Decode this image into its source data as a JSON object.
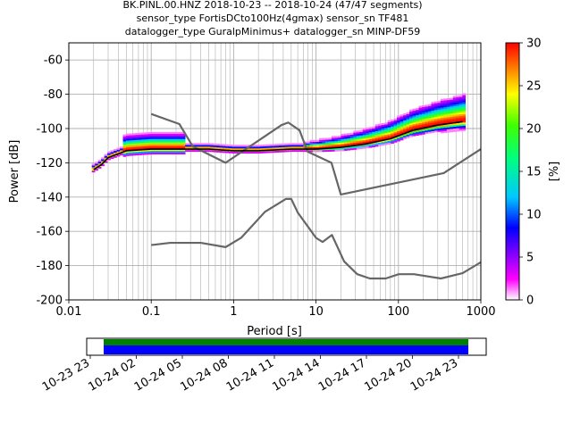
{
  "title_lines": [
    "BK.PINL.00.HNZ   2018-10-23 -- 2018-10-24  (47/47 segments)",
    "sensor_type FortisDCto100Hz(4gmax) sensor_sn TF481",
    "datalogger_type GuralpMinimus+ datalogger_sn MINP-DF59"
  ],
  "colorbar": {
    "label": "[%]",
    "ticks": [
      "0",
      "5",
      "10",
      "15",
      "20",
      "25",
      "30"
    ],
    "range": [
      0,
      30
    ]
  },
  "timeline": {
    "ticks": [
      "10-23 23",
      "10-24 02",
      "10-24 05",
      "10-24 08",
      "10-24 11",
      "10-24 14",
      "10-24 17",
      "10-24 20",
      "10-24 23"
    ],
    "coverage_colors": [
      "#008000",
      "#0000ff"
    ]
  },
  "chart_data": {
    "type": "heatmap",
    "xlabel": "Period [s]",
    "ylabel": "Power [dB]",
    "x_scale": "log",
    "xlim": [
      0.01,
      1000
    ],
    "ylim": [
      -200,
      -50
    ],
    "x_ticks": [
      "0.01",
      "0.1",
      "1",
      "10",
      "100",
      "1000"
    ],
    "y_ticks": [
      "-200",
      "-180",
      "-160",
      "-140",
      "-120",
      "-100",
      "-80",
      "-60"
    ],
    "grid": true,
    "colormap": "pqlx",
    "mode_curve": {
      "periods": [
        0.02,
        0.025,
        0.03,
        0.05,
        0.1,
        0.2,
        0.5,
        1,
        2,
        5,
        10,
        20,
        40,
        80,
        150,
        300,
        600
      ],
      "power": [
        -124,
        -121,
        -117,
        -113,
        -112,
        -112,
        -112,
        -113,
        -113,
        -112,
        -112,
        -111,
        -109,
        -106,
        -101,
        -98,
        -96
      ]
    },
    "nhnm": {
      "periods": [
        0.1,
        0.22,
        0.32,
        0.8,
        3.8,
        4.6,
        6.3,
        7.9,
        15.4,
        20,
        354.8,
        1000
      ],
      "power": [
        -91.5,
        -97.4,
        -110.5,
        -120,
        -98,
        -96.5,
        -101,
        -113.5,
        -120,
        -138.5,
        -126,
        -112
      ]
    },
    "nlnm": {
      "periods": [
        0.1,
        0.17,
        0.4,
        0.8,
        1.24,
        2.4,
        4.3,
        5,
        6,
        10,
        12,
        15.6,
        21.9,
        31.6,
        45,
        70,
        101,
        154,
        328,
        600,
        1000
      ],
      "power": [
        -168,
        -166.7,
        -166.7,
        -169.2,
        -163.7,
        -148.6,
        -141.1,
        -141.1,
        -149,
        -163.8,
        -166.2,
        -162.1,
        -177.5,
        -185,
        -187.5,
        -187.5,
        -185,
        -185,
        -187.5,
        -184.4,
        -178
      ]
    }
  }
}
